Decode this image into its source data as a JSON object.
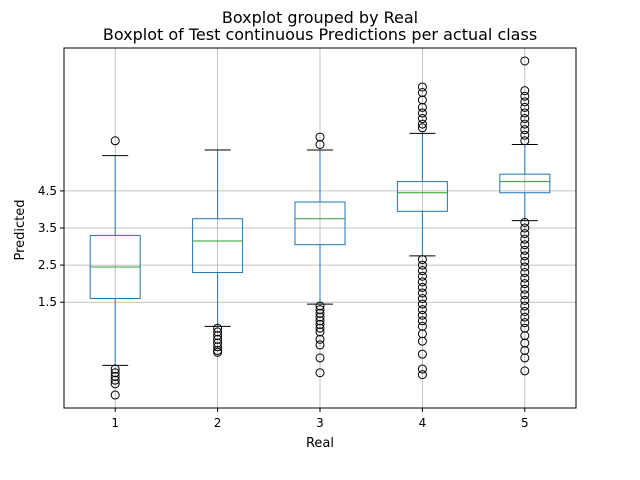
{
  "chart_data": {
    "type": "boxplot",
    "suptitle": "Boxplot grouped by Real",
    "title": "Boxplot of Test continuous Predictions per actual class",
    "xlabel": "Real",
    "ylabel": "Predicted",
    "categories": [
      "1",
      "2",
      "3",
      "4",
      "5"
    ],
    "y_ticks": [
      1.5,
      2.5,
      3.5,
      4.5
    ],
    "y_tick_labels": [
      "1.5",
      "2.5",
      "3.5",
      "4.5"
    ],
    "ylim": [
      -1.35,
      8.35
    ],
    "grid": true,
    "boxes": [
      {
        "label": "1",
        "whisker_low": -0.2,
        "q1": 1.6,
        "median": 2.45,
        "q3": 3.3,
        "whisker_high": 5.45,
        "outliers_high": [
          5.85
        ],
        "outliers_low": [
          -0.3,
          -0.4,
          -0.5,
          -0.6,
          -0.7,
          -1.0
        ]
      },
      {
        "label": "2",
        "whisker_low": 0.85,
        "q1": 2.3,
        "median": 3.15,
        "q3": 3.75,
        "whisker_high": 5.6,
        "outliers_high": [],
        "outliers_low": [
          0.8,
          0.7,
          0.6,
          0.5,
          0.4,
          0.3,
          0.2,
          0.15
        ]
      },
      {
        "label": "3",
        "whisker_low": 1.45,
        "q1": 3.05,
        "median": 3.75,
        "q3": 4.2,
        "whisker_high": 5.6,
        "outliers_high": [
          5.75,
          5.95
        ],
        "outliers_low": [
          1.4,
          1.3,
          1.2,
          1.1,
          1.0,
          0.9,
          0.8,
          0.7,
          0.5,
          0.35,
          0.0,
          -0.4
        ]
      },
      {
        "label": "4",
        "whisker_low": 2.75,
        "q1": 3.95,
        "median": 4.45,
        "q3": 4.75,
        "whisker_high": 6.05,
        "outliers_high": [
          6.2,
          6.3,
          6.45,
          6.6,
          6.75,
          6.95,
          7.15,
          7.3
        ],
        "outliers_low": [
          2.65,
          2.5,
          2.35,
          2.2,
          2.05,
          1.9,
          1.75,
          1.6,
          1.45,
          1.3,
          1.15,
          1.0,
          0.85,
          0.65,
          0.45,
          0.1,
          -0.3,
          -0.45
        ]
      },
      {
        "label": "5",
        "whisker_low": 3.7,
        "q1": 4.45,
        "median": 4.75,
        "q3": 4.95,
        "whisker_high": 5.75,
        "outliers_high": [
          5.85,
          6.0,
          6.15,
          6.3,
          6.45,
          6.6,
          6.75,
          6.9,
          7.05,
          7.2,
          8.0
        ],
        "outliers_low": [
          3.65,
          3.5,
          3.35,
          3.2,
          3.05,
          2.9,
          2.75,
          2.6,
          2.45,
          2.3,
          2.15,
          2.0,
          1.85,
          1.7,
          1.55,
          1.4,
          1.25,
          1.1,
          0.95,
          0.8,
          0.6,
          0.4,
          0.2,
          0.0,
          -0.35
        ]
      }
    ],
    "colors": {
      "box": "#1f77b4",
      "median": "#2ca02c",
      "whisker": "#1f77b4",
      "cap": "#000000",
      "outlier": "#000000",
      "grid": "#b0b0b0",
      "axes": "#000000"
    }
  }
}
